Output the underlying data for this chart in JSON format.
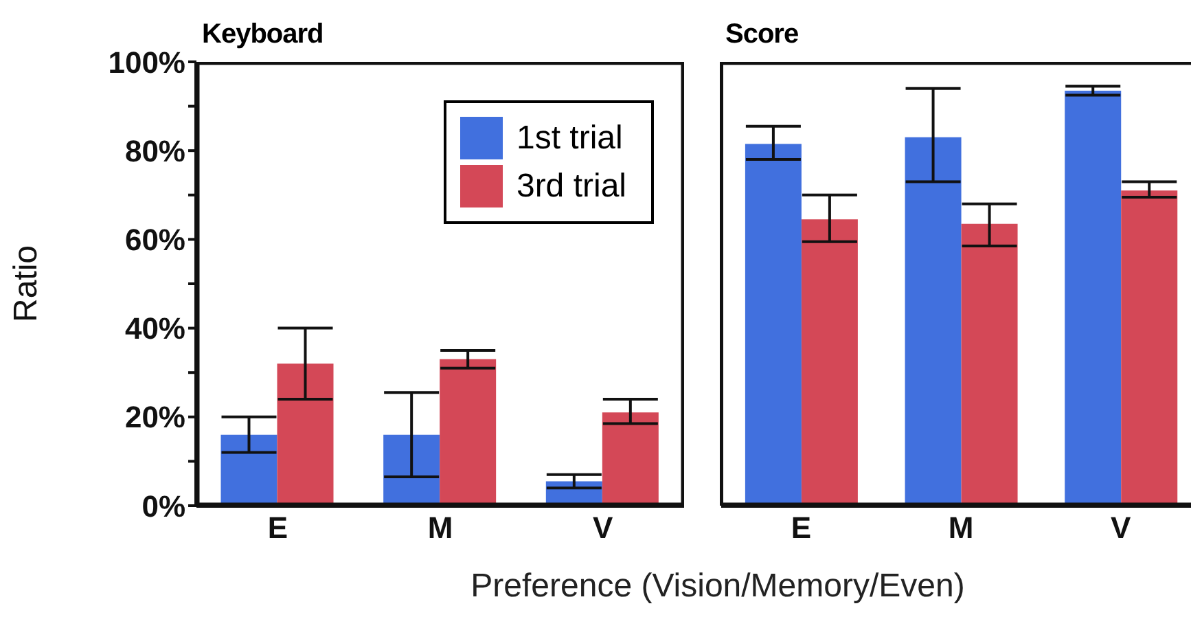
{
  "chart_data": [
    {
      "type": "bar",
      "title": "Keyboard",
      "ylabel": "Ratio",
      "xlabel": "Preference (Vision/Memory/Even)",
      "categories": [
        "E",
        "M",
        "V"
      ],
      "series": [
        {
          "name": "1st trial",
          "color": "#4170de",
          "values": [
            16,
            16,
            5.5
          ],
          "errors": [
            [
              12,
              20
            ],
            [
              6.5,
              25.5
            ],
            [
              4,
              7
            ]
          ]
        },
        {
          "name": "3rd trial",
          "color": "#d44857",
          "values": [
            32,
            33,
            21
          ],
          "errors": [
            [
              24,
              40
            ],
            [
              31,
              35
            ],
            [
              18.5,
              24
            ]
          ]
        }
      ],
      "ylim": [
        0,
        100
      ],
      "yticks": [
        {
          "value": 0,
          "label": "0%"
        },
        {
          "value": 10,
          "label": null
        },
        {
          "value": 20,
          "label": "20%"
        },
        {
          "value": 30,
          "label": null
        },
        {
          "value": 40,
          "label": "40%"
        },
        {
          "value": 50,
          "label": null
        },
        {
          "value": 60,
          "label": "60%"
        },
        {
          "value": 70,
          "label": null
        },
        {
          "value": 80,
          "label": "80%"
        },
        {
          "value": 90,
          "label": null
        },
        {
          "value": 100,
          "label": "100%"
        }
      ],
      "legend": "top right"
    },
    {
      "type": "bar",
      "title": "Score",
      "categories": [
        "E",
        "M",
        "V"
      ],
      "series": [
        {
          "color": "#4170de",
          "values": [
            81.5,
            83,
            93.5
          ],
          "errors": [
            [
              78,
              85.5
            ],
            [
              73,
              94
            ],
            [
              92.5,
              94.5
            ]
          ]
        },
        {
          "color": "#d44857",
          "values": [
            64.5,
            63.5,
            71
          ],
          "errors": [
            [
              59.5,
              70
            ],
            [
              58.5,
              68
            ],
            [
              69.5,
              73
            ]
          ]
        }
      ],
      "ylim": [
        0,
        100
      ],
      "tick_labels": "x"
    }
  ]
}
